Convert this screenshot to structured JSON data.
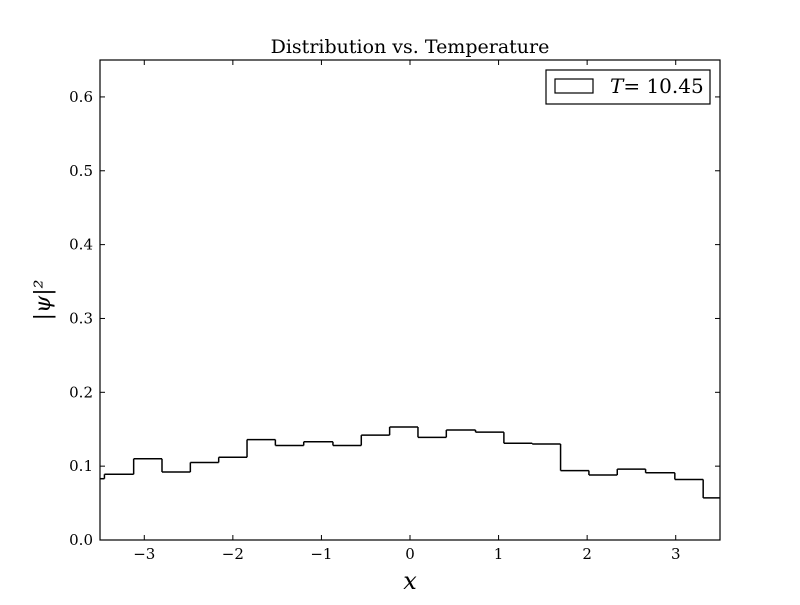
{
  "chart_data": {
    "type": "histogram",
    "title": "Distribution vs. Temperature",
    "xlabel": "x",
    "ylabel": "|ψ|²",
    "xlim": [
      -3.5,
      3.5
    ],
    "ylim": [
      0.0,
      0.65
    ],
    "x_ticks": [
      "−3",
      "−2",
      "−1",
      "0",
      "1",
      "2",
      "3"
    ],
    "x_tick_values": [
      -3,
      -2,
      -1,
      0,
      1,
      2,
      3
    ],
    "y_ticks": [
      "0.0",
      "0.1",
      "0.2",
      "0.3",
      "0.4",
      "0.5",
      "0.6"
    ],
    "y_tick_values": [
      0.0,
      0.1,
      0.2,
      0.3,
      0.4,
      0.5,
      0.6
    ],
    "grid": false,
    "legend_position": "top-right",
    "series": [
      {
        "name": "T = 10.45",
        "label_italic": "T",
        "label_rest": "= 10.45",
        "color": "#000000",
        "histtype": "step",
        "bin_edges": [
          -3.5,
          -3.45,
          -3.12,
          -2.8,
          -2.48,
          -2.16,
          -1.84,
          -1.52,
          -1.2,
          -0.87,
          -0.55,
          -0.23,
          0.09,
          0.41,
          0.74,
          1.06,
          1.38,
          1.7,
          2.02,
          2.34,
          2.66,
          2.99,
          3.31,
          3.5
        ],
        "values": [
          0.083,
          0.089,
          0.11,
          0.092,
          0.105,
          0.112,
          0.136,
          0.128,
          0.133,
          0.128,
          0.142,
          0.153,
          0.139,
          0.149,
          0.146,
          0.131,
          0.13,
          0.094,
          0.088,
          0.096,
          0.091,
          0.082,
          0.057
        ]
      }
    ]
  }
}
